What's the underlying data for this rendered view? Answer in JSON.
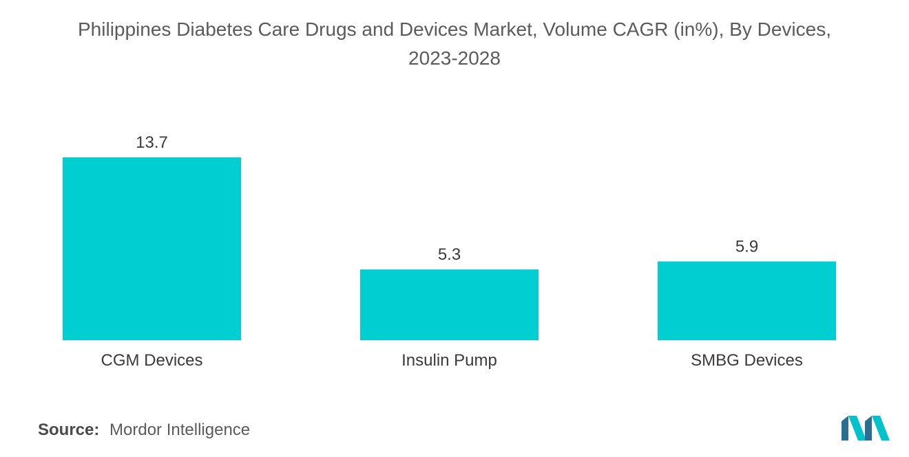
{
  "title_line1": "Philippines Diabetes Care Drugs and Devices Market, Volume CAGR (in%), By Devices,",
  "title_line2": "2023-2028",
  "source_label": "Source:",
  "source_value": "Mordor Intelligence",
  "logo_icon": "mordor-intelligence-logo-icon",
  "colors": {
    "bar": "#00ced1",
    "logo_dark": "#2a6f8f",
    "logo_light": "#00c2cc"
  },
  "chart_data": {
    "type": "bar",
    "title": "Philippines Diabetes Care Drugs and Devices Market, Volume CAGR (in%), By Devices, 2023-2028",
    "categories": [
      "CGM Devices",
      "Insulin Pump",
      "SMBG Devices"
    ],
    "values": [
      13.7,
      5.3,
      5.9
    ],
    "value_labels": [
      "13.7",
      "5.3",
      "5.9"
    ],
    "xlabel": "",
    "ylabel": "",
    "ylim": [
      0,
      13.7
    ],
    "grid": false,
    "legend": "none"
  }
}
